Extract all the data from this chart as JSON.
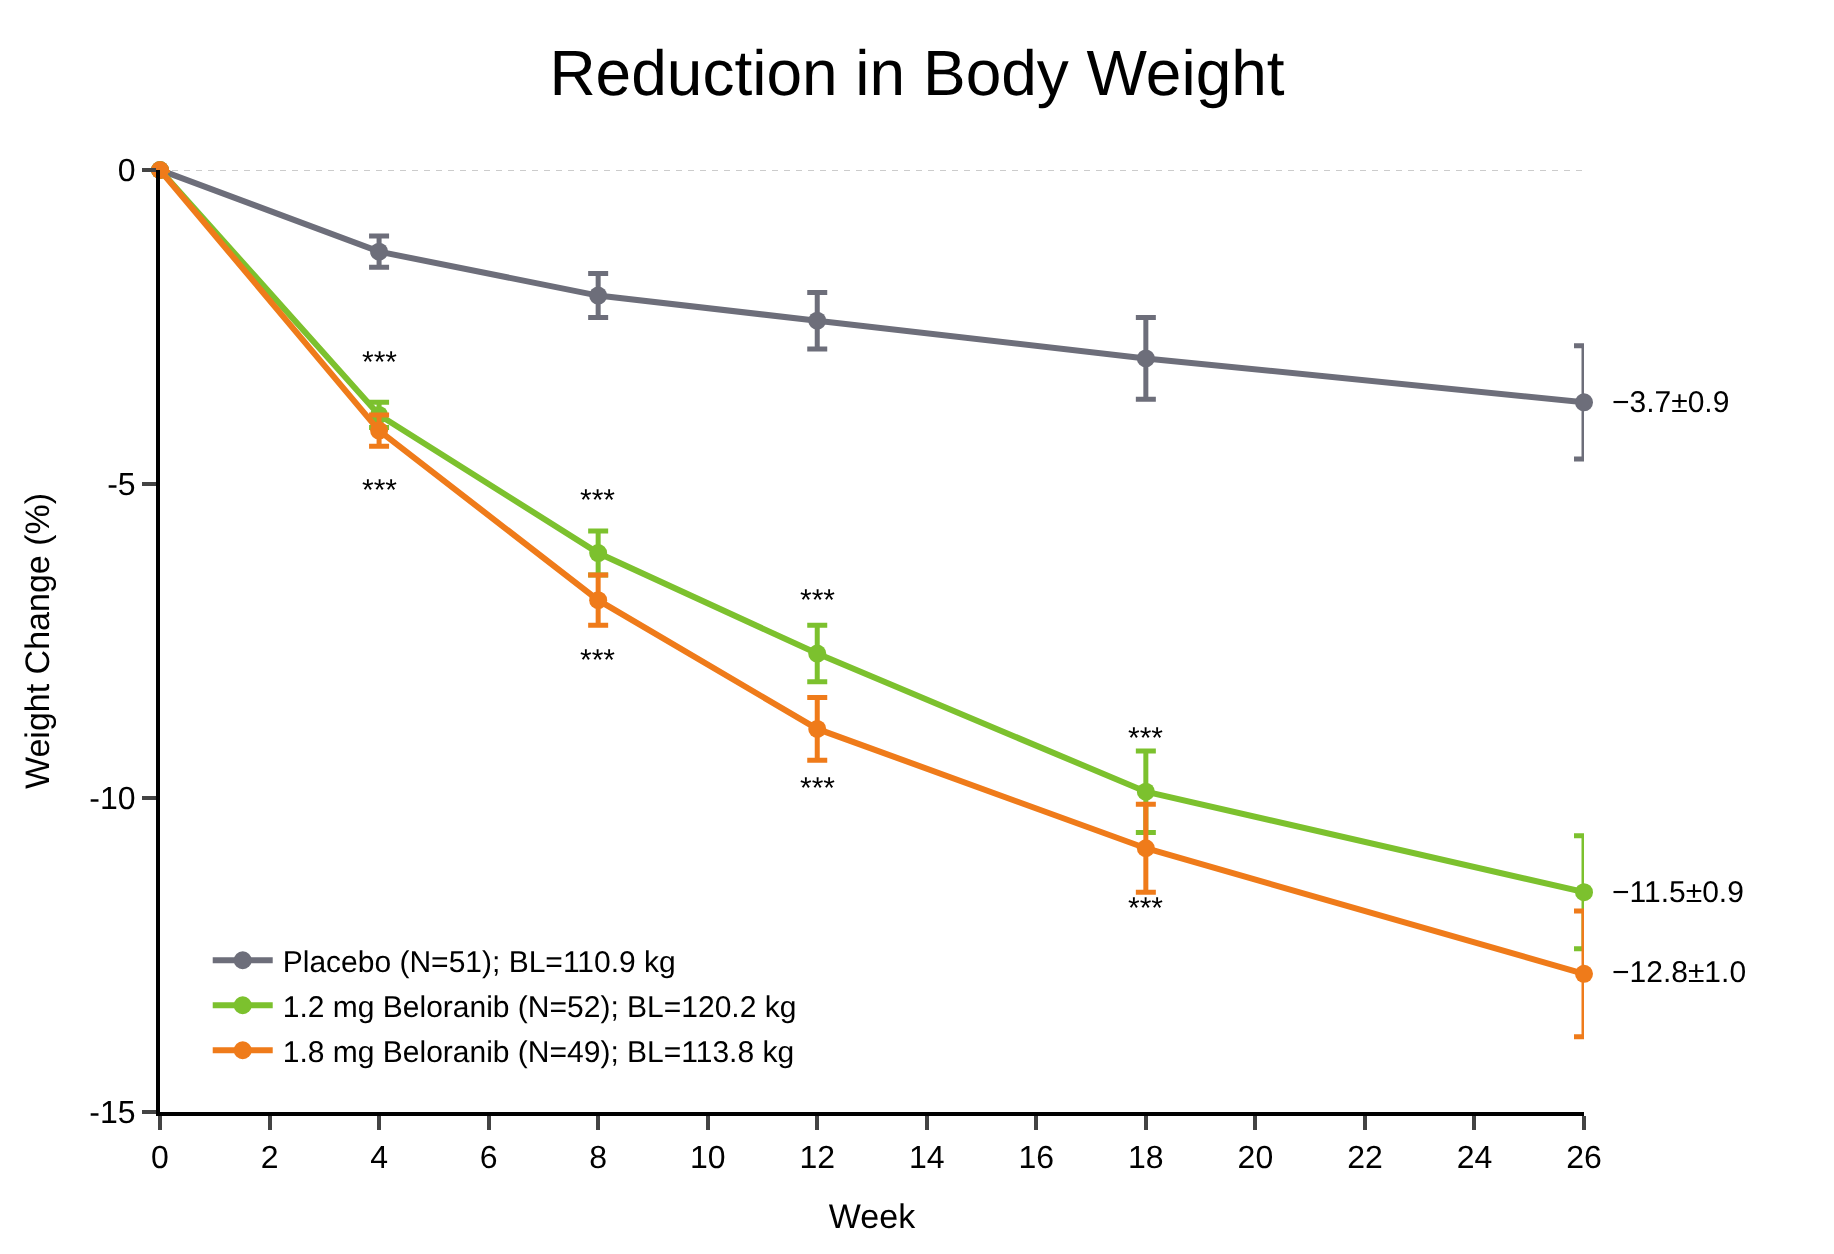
{
  "chart_data": {
    "type": "line",
    "title": "Reduction in Body Weight",
    "xlabel": "Week",
    "ylabel": "Weight Change (%)",
    "x": [
      0,
      4,
      8,
      12,
      18,
      26
    ],
    "series": [
      {
        "name": "Placebo (N=51); BL=110.9 kg",
        "color": "#6d6e7a",
        "values": [
          0,
          -1.3,
          -2.0,
          -2.4,
          -3.0,
          -3.7
        ],
        "errors": [
          null,
          0.25,
          0.35,
          0.45,
          0.65,
          0.9
        ]
      },
      {
        "name": "1.2 mg Beloranib (N=52); BL=120.2 kg",
        "color": "#7cc12e",
        "values": [
          0,
          -3.9,
          -6.1,
          -7.7,
          -9.9,
          -11.5
        ],
        "errors": [
          null,
          0.2,
          0.35,
          0.45,
          0.65,
          0.9
        ]
      },
      {
        "name": "1.8 mg Beloranib (N=49); BL=113.8 kg",
        "color": "#ef7b1a",
        "values": [
          0,
          -4.15,
          -6.85,
          -8.9,
          -10.8,
          -12.8
        ],
        "errors": [
          null,
          0.25,
          0.4,
          0.5,
          0.7,
          1.0
        ]
      }
    ],
    "xlim": [
      0,
      26
    ],
    "xticks": [
      0,
      2,
      4,
      6,
      8,
      10,
      12,
      14,
      16,
      18,
      20,
      22,
      24,
      26
    ],
    "ylim": [
      -15,
      0
    ],
    "yticks": [
      -15,
      -10,
      -5,
      0
    ],
    "ref_lines": [
      {
        "axis": "y",
        "value": 0,
        "line_style": "dotted",
        "color": "#cccccc"
      }
    ],
    "annotations": [
      {
        "text": "−3.7±0.9",
        "x": 26,
        "y": -3.7
      },
      {
        "text": "−11.5±0.9",
        "x": 26,
        "y": -11.5
      },
      {
        "text": "−12.8±1.0",
        "x": 26,
        "y": -12.8
      },
      {
        "text": "***",
        "x": 4,
        "y": -3.9
      },
      {
        "text": "***",
        "x": 4,
        "y": -4.15
      },
      {
        "text": "***",
        "x": 8,
        "y": -6.1
      },
      {
        "text": "***",
        "x": 8,
        "y": -6.85
      },
      {
        "text": "***",
        "x": 12,
        "y": -7.7
      },
      {
        "text": "***",
        "x": 12,
        "y": -8.9
      },
      {
        "text": "***",
        "x": 18,
        "y": -9.9
      },
      {
        "text": "***",
        "x": 18,
        "y": -10.8
      }
    ],
    "legend": "bottom left",
    "marker": "circle",
    "line_style": "solid",
    "grid": false
  }
}
